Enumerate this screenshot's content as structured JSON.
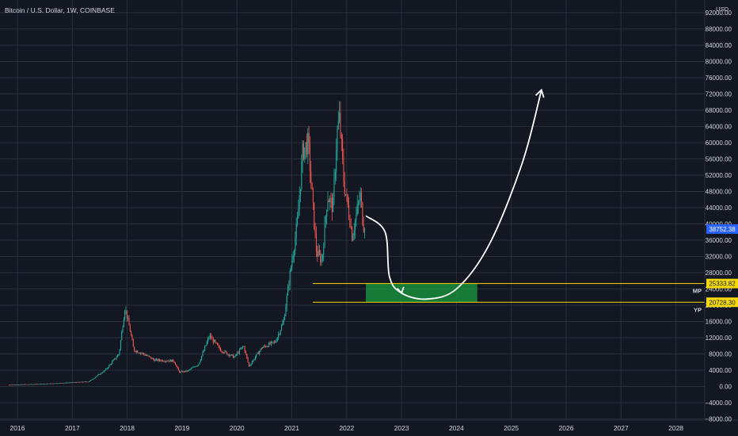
{
  "chart_data": {
    "type": "candlestick",
    "title": "Bitcoin / U.S. Dollar, 1W, COINBASE",
    "ylabel": "USD",
    "ylim": [
      -8000,
      94000
    ],
    "y_ticks": [
      "92000.00",
      "88000.00",
      "84000.00",
      "80000.00",
      "76000.00",
      "72000.00",
      "68000.00",
      "64000.00",
      "60000.00",
      "56000.00",
      "52000.00",
      "48000.00",
      "44000.00",
      "40000.00",
      "36000.00",
      "32000.00",
      "28000.00",
      "24000.00",
      "20000.00",
      "16000.00",
      "12000.00",
      "8000.00",
      "4000.00",
      "0.00",
      "−4000.00",
      "−8000.00"
    ],
    "x_ticks": [
      "2016",
      "2017",
      "2018",
      "2019",
      "2020",
      "2021",
      "2022",
      "2023",
      "2024",
      "2025",
      "2026",
      "2027",
      "2028"
    ],
    "grid": true,
    "colors": {
      "background": "#131722",
      "up": "#26a69a",
      "down": "#ef5350",
      "grid": "#2a2e39",
      "level": "#f5d90a",
      "zone": "#1a9c3e",
      "badge_current": "#2962ff",
      "badge_level": "#f5d90a"
    },
    "price_path": [
      {
        "x": 2015.85,
        "y": 400
      },
      {
        "x": 2016.5,
        "y": 650
      },
      {
        "x": 2017.0,
        "y": 1000
      },
      {
        "x": 2017.3,
        "y": 1200
      },
      {
        "x": 2017.6,
        "y": 4000
      },
      {
        "x": 2017.85,
        "y": 8000
      },
      {
        "x": 2017.96,
        "y": 19500
      },
      {
        "x": 2018.05,
        "y": 14000
      },
      {
        "x": 2018.12,
        "y": 9000
      },
      {
        "x": 2018.3,
        "y": 8000
      },
      {
        "x": 2018.5,
        "y": 6500
      },
      {
        "x": 2018.85,
        "y": 6300
      },
      {
        "x": 2018.95,
        "y": 3500
      },
      {
        "x": 2019.1,
        "y": 3800
      },
      {
        "x": 2019.3,
        "y": 5500
      },
      {
        "x": 2019.5,
        "y": 12500
      },
      {
        "x": 2019.7,
        "y": 9000
      },
      {
        "x": 2019.95,
        "y": 7200
      },
      {
        "x": 2020.12,
        "y": 10000
      },
      {
        "x": 2020.22,
        "y": 5000
      },
      {
        "x": 2020.45,
        "y": 9500
      },
      {
        "x": 2020.7,
        "y": 11000
      },
      {
        "x": 2020.85,
        "y": 16000
      },
      {
        "x": 2020.98,
        "y": 29000
      },
      {
        "x": 2021.1,
        "y": 40000
      },
      {
        "x": 2021.2,
        "y": 58000
      },
      {
        "x": 2021.3,
        "y": 60000
      },
      {
        "x": 2021.38,
        "y": 45000
      },
      {
        "x": 2021.45,
        "y": 33000
      },
      {
        "x": 2021.55,
        "y": 31000
      },
      {
        "x": 2021.65,
        "y": 47000
      },
      {
        "x": 2021.75,
        "y": 44000
      },
      {
        "x": 2021.82,
        "y": 62000
      },
      {
        "x": 2021.87,
        "y": 66000
      },
      {
        "x": 2021.95,
        "y": 50000
      },
      {
        "x": 2022.05,
        "y": 42000
      },
      {
        "x": 2022.1,
        "y": 37000
      },
      {
        "x": 2022.2,
        "y": 44000
      },
      {
        "x": 2022.25,
        "y": 47000
      },
      {
        "x": 2022.3,
        "y": 40000
      },
      {
        "x": 2022.33,
        "y": 38752
      }
    ],
    "current_price": "38752.38",
    "levels": [
      {
        "name": "MP",
        "value": 25333.82,
        "label": "25333.82"
      },
      {
        "name": "YP",
        "value": 20728.3,
        "label": "20728.30"
      }
    ],
    "zone": {
      "x_start": 2022.35,
      "x_end": 2024.38,
      "y_low": 20728.3,
      "y_high": 25333.82
    },
    "projection": [
      {
        "x": 2022.35,
        "y": 42000
      },
      {
        "x": 2022.7,
        "y": 38000
      },
      {
        "x": 2022.78,
        "y": 27000
      },
      {
        "x": 2023.0,
        "y": 23000
      },
      {
        "x": 2023.45,
        "y": 21500
      },
      {
        "x": 2024.0,
        "y": 24000
      },
      {
        "x": 2024.6,
        "y": 35000
      },
      {
        "x": 2025.2,
        "y": 55000
      },
      {
        "x": 2025.55,
        "y": 73000
      }
    ]
  }
}
